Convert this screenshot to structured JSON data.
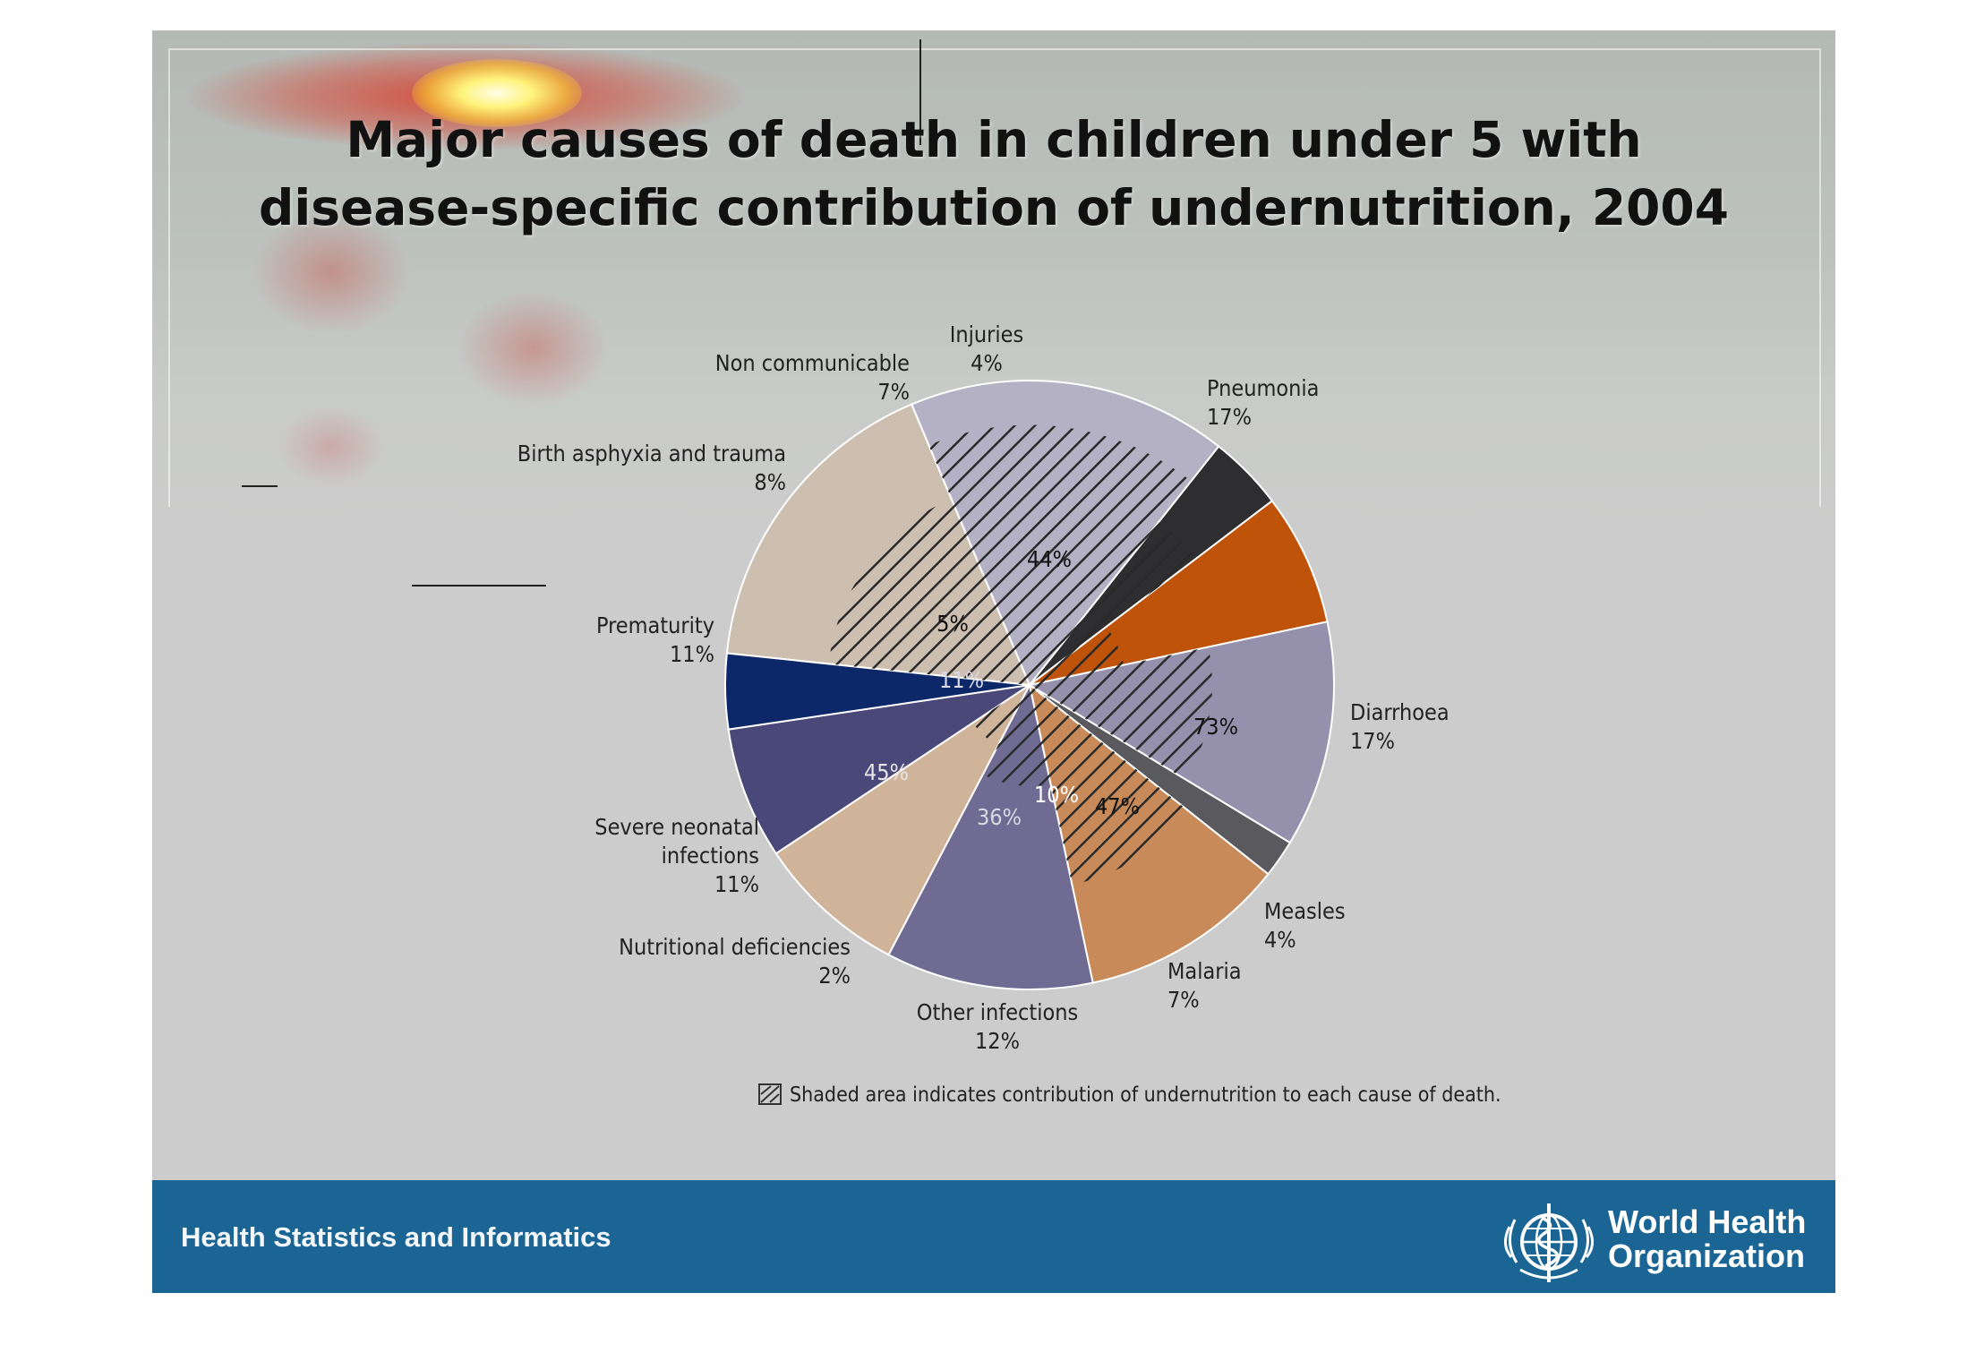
{
  "slide": {
    "title_line1": "Major causes of death in children under 5 with",
    "title_line2": "disease-specific contribution of undernutrition, 2004",
    "footer_text": "Health Statistics and Informatics",
    "org_line1": "World Health",
    "org_line2": "Organization"
  },
  "chart_data": {
    "type": "pie",
    "title": "Major causes of death in children under 5 with disease-specific contribution of undernutrition, 2004",
    "legend_note": "Shaded area indicates contribution of undernutrition to each cause of death.",
    "slices": [
      {
        "name": "Pneumonia",
        "label": "17%",
        "value": 17,
        "undernutrition": "44%",
        "color": "#cdbfb0"
      },
      {
        "name": "Diarrhoea",
        "label": "17%",
        "value": 17,
        "undernutrition": "73%",
        "color": "#b3b1c3"
      },
      {
        "name": "Measles",
        "label": "4%",
        "value": 4,
        "undernutrition": "47%",
        "color": "#2e2d30"
      },
      {
        "name": "Malaria",
        "label": "7%",
        "value": 7,
        "undernutrition": "10%",
        "color": "#bf5309"
      },
      {
        "name": "Other infections",
        "label": "12%",
        "value": 12,
        "undernutrition": "36%",
        "color": "#9591ac"
      },
      {
        "name": "Nutritional deficiencies",
        "label": "2%",
        "value": 2,
        "undernutrition": "",
        "color": "#5a595d"
      },
      {
        "name": "Severe neonatal infections",
        "label": "11%",
        "value": 11,
        "undernutrition": "45%",
        "color": "#c88a58"
      },
      {
        "name": "Prematurity",
        "label": "11%",
        "value": 11,
        "undernutrition": "11%",
        "color": "#6f6b93"
      },
      {
        "name": "Birth asphyxia and trauma",
        "label": "8%",
        "value": 8,
        "undernutrition": "5%",
        "color": "#d0b49a"
      },
      {
        "name": "Non communicable",
        "label": "7%",
        "value": 7,
        "undernutrition": "",
        "color": "#4a4878"
      },
      {
        "name": "Injuries",
        "label": "4%",
        "value": 4,
        "undernutrition": "",
        "color": "#0d2868"
      }
    ]
  }
}
